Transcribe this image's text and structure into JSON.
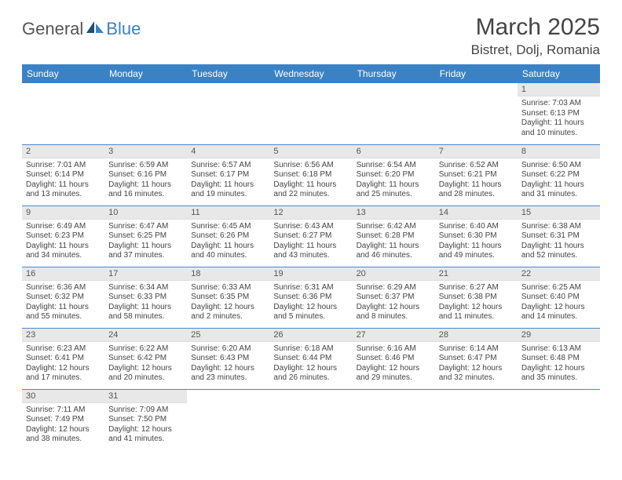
{
  "logo": {
    "part1": "General",
    "part2": "Blue"
  },
  "header": {
    "title": "March 2025",
    "location": "Bistret, Dolj, Romania"
  },
  "colors": {
    "header_bg": "#3b82c4",
    "row_divider": "#4a8ac8",
    "daynum_bg": "#e8e8e8"
  },
  "weekdays": [
    "Sunday",
    "Monday",
    "Tuesday",
    "Wednesday",
    "Thursday",
    "Friday",
    "Saturday"
  ],
  "grid": {
    "first_weekday_index": 6,
    "days_in_month": 31
  },
  "days": {
    "1": {
      "sunrise": "7:03 AM",
      "sunset": "6:13 PM",
      "daylight": "11 hours and 10 minutes."
    },
    "2": {
      "sunrise": "7:01 AM",
      "sunset": "6:14 PM",
      "daylight": "11 hours and 13 minutes."
    },
    "3": {
      "sunrise": "6:59 AM",
      "sunset": "6:16 PM",
      "daylight": "11 hours and 16 minutes."
    },
    "4": {
      "sunrise": "6:57 AM",
      "sunset": "6:17 PM",
      "daylight": "11 hours and 19 minutes."
    },
    "5": {
      "sunrise": "6:56 AM",
      "sunset": "6:18 PM",
      "daylight": "11 hours and 22 minutes."
    },
    "6": {
      "sunrise": "6:54 AM",
      "sunset": "6:20 PM",
      "daylight": "11 hours and 25 minutes."
    },
    "7": {
      "sunrise": "6:52 AM",
      "sunset": "6:21 PM",
      "daylight": "11 hours and 28 minutes."
    },
    "8": {
      "sunrise": "6:50 AM",
      "sunset": "6:22 PM",
      "daylight": "11 hours and 31 minutes."
    },
    "9": {
      "sunrise": "6:49 AM",
      "sunset": "6:23 PM",
      "daylight": "11 hours and 34 minutes."
    },
    "10": {
      "sunrise": "6:47 AM",
      "sunset": "6:25 PM",
      "daylight": "11 hours and 37 minutes."
    },
    "11": {
      "sunrise": "6:45 AM",
      "sunset": "6:26 PM",
      "daylight": "11 hours and 40 minutes."
    },
    "12": {
      "sunrise": "6:43 AM",
      "sunset": "6:27 PM",
      "daylight": "11 hours and 43 minutes."
    },
    "13": {
      "sunrise": "6:42 AM",
      "sunset": "6:28 PM",
      "daylight": "11 hours and 46 minutes."
    },
    "14": {
      "sunrise": "6:40 AM",
      "sunset": "6:30 PM",
      "daylight": "11 hours and 49 minutes."
    },
    "15": {
      "sunrise": "6:38 AM",
      "sunset": "6:31 PM",
      "daylight": "11 hours and 52 minutes."
    },
    "16": {
      "sunrise": "6:36 AM",
      "sunset": "6:32 PM",
      "daylight": "11 hours and 55 minutes."
    },
    "17": {
      "sunrise": "6:34 AM",
      "sunset": "6:33 PM",
      "daylight": "11 hours and 58 minutes."
    },
    "18": {
      "sunrise": "6:33 AM",
      "sunset": "6:35 PM",
      "daylight": "12 hours and 2 minutes."
    },
    "19": {
      "sunrise": "6:31 AM",
      "sunset": "6:36 PM",
      "daylight": "12 hours and 5 minutes."
    },
    "20": {
      "sunrise": "6:29 AM",
      "sunset": "6:37 PM",
      "daylight": "12 hours and 8 minutes."
    },
    "21": {
      "sunrise": "6:27 AM",
      "sunset": "6:38 PM",
      "daylight": "12 hours and 11 minutes."
    },
    "22": {
      "sunrise": "6:25 AM",
      "sunset": "6:40 PM",
      "daylight": "12 hours and 14 minutes."
    },
    "23": {
      "sunrise": "6:23 AM",
      "sunset": "6:41 PM",
      "daylight": "12 hours and 17 minutes."
    },
    "24": {
      "sunrise": "6:22 AM",
      "sunset": "6:42 PM",
      "daylight": "12 hours and 20 minutes."
    },
    "25": {
      "sunrise": "6:20 AM",
      "sunset": "6:43 PM",
      "daylight": "12 hours and 23 minutes."
    },
    "26": {
      "sunrise": "6:18 AM",
      "sunset": "6:44 PM",
      "daylight": "12 hours and 26 minutes."
    },
    "27": {
      "sunrise": "6:16 AM",
      "sunset": "6:46 PM",
      "daylight": "12 hours and 29 minutes."
    },
    "28": {
      "sunrise": "6:14 AM",
      "sunset": "6:47 PM",
      "daylight": "12 hours and 32 minutes."
    },
    "29": {
      "sunrise": "6:13 AM",
      "sunset": "6:48 PM",
      "daylight": "12 hours and 35 minutes."
    },
    "30": {
      "sunrise": "7:11 AM",
      "sunset": "7:49 PM",
      "daylight": "12 hours and 38 minutes."
    },
    "31": {
      "sunrise": "7:09 AM",
      "sunset": "7:50 PM",
      "daylight": "12 hours and 41 minutes."
    }
  },
  "labels": {
    "sunrise_prefix": "Sunrise: ",
    "sunset_prefix": "Sunset: ",
    "daylight_prefix": "Daylight: "
  }
}
